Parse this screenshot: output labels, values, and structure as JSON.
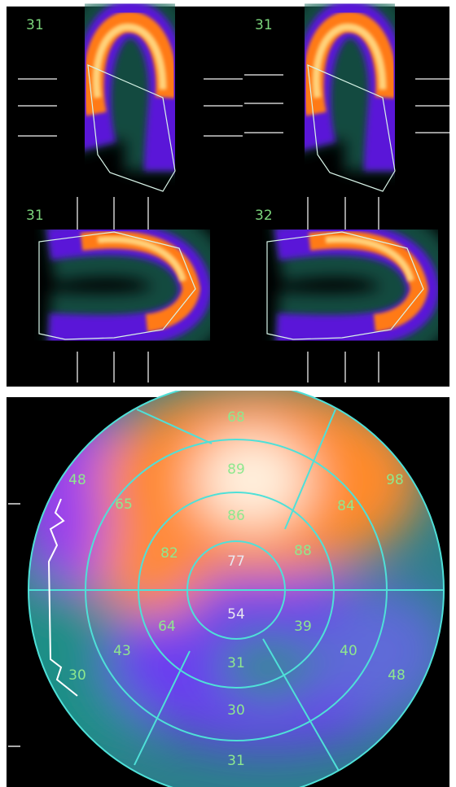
{
  "views": [
    {
      "label": "31"
    },
    {
      "label": "31"
    },
    {
      "label": "31"
    },
    {
      "label": "32"
    }
  ],
  "polar_map": {
    "segments": [
      68,
      89,
      86,
      77,
      88,
      82,
      65,
      48,
      84,
      98,
      54,
      39,
      64,
      43,
      40,
      31,
      30,
      48,
      30,
      31
    ]
  }
}
